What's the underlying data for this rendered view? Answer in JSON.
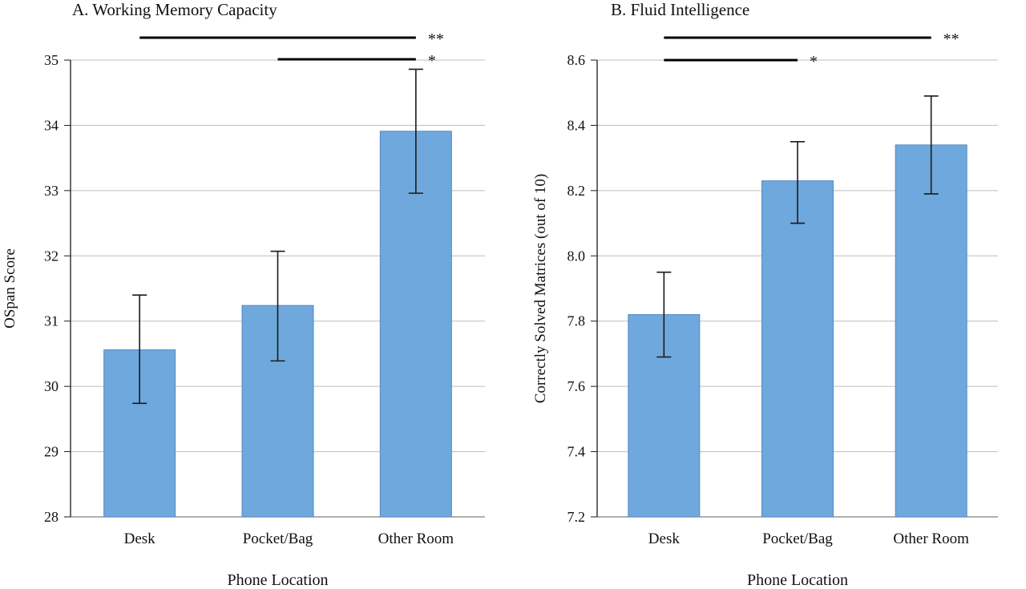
{
  "figure": {
    "background": "#ffffff",
    "bar_color": "#6FA8DC",
    "bar_border_color": "#5589C4",
    "grid_color": "#bdbdbd",
    "axis_color": "#808080",
    "error_bar_color": "#1a1a1a",
    "significance_line_color": "#000000"
  },
  "chart_data": [
    {
      "type": "bar",
      "panel": "A",
      "title": "A. Working Memory Capacity",
      "xlabel": "Phone Location",
      "ylabel": "OSpan Score",
      "categories": [
        "Desk",
        "Pocket/Bag",
        "Other Room"
      ],
      "values": [
        30.56,
        31.24,
        33.91
      ],
      "error_low": [
        29.74,
        30.39,
        32.96
      ],
      "error_high": [
        31.4,
        32.07,
        34.86
      ],
      "ylim": [
        28,
        35
      ],
      "ytick_step": 1,
      "ytick_decimals": 0,
      "grid": true,
      "legend": "none",
      "bar_color": "#6FA8DC",
      "significance": [
        {
          "from": 0,
          "to": 2,
          "label": "**"
        },
        {
          "from": 1,
          "to": 2,
          "label": "*"
        }
      ]
    },
    {
      "type": "bar",
      "panel": "B",
      "title": "B. Fluid Intelligence",
      "xlabel": "Phone Location",
      "ylabel": "Correctly Solved Matrices (out of 10)",
      "categories": [
        "Desk",
        "Pocket/Bag",
        "Other Room"
      ],
      "values": [
        7.82,
        8.23,
        8.34
      ],
      "error_low": [
        7.69,
        8.1,
        8.19
      ],
      "error_high": [
        7.95,
        8.35,
        8.49
      ],
      "ylim": [
        7.2,
        8.6
      ],
      "ytick_step": 0.2,
      "ytick_decimals": 1,
      "grid": true,
      "legend": "none",
      "bar_color": "#6FA8DC",
      "significance": [
        {
          "from": 0,
          "to": 2,
          "label": "**"
        },
        {
          "from": 0,
          "to": 1,
          "label": "*"
        }
      ]
    }
  ]
}
